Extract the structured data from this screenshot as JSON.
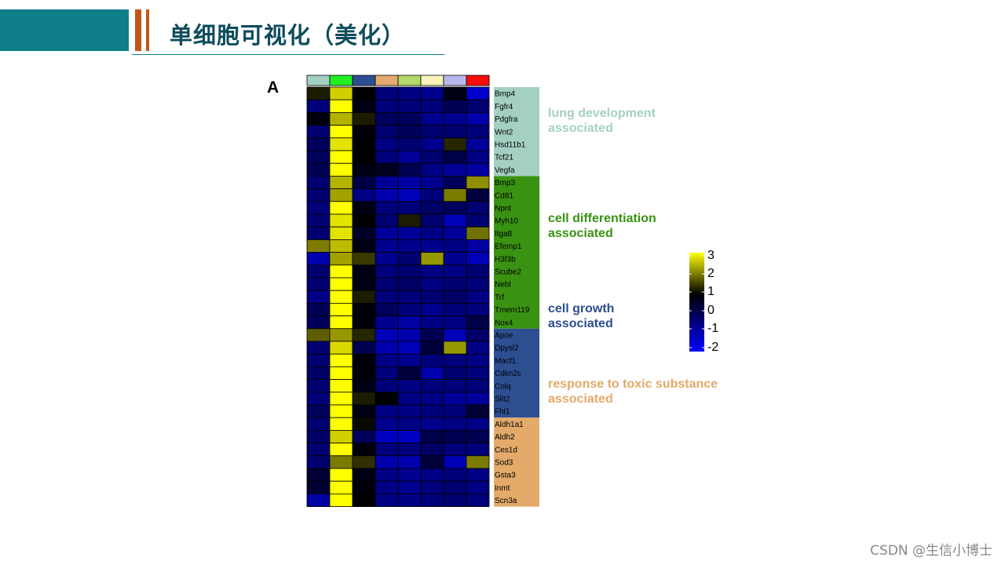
{
  "slide": {
    "title": "单细胞可视化（美化）",
    "panel_label": "A",
    "watermark": "CSDN @生信小博士"
  },
  "colors": {
    "teal": "#0f7f8a",
    "orange": "#c4541b",
    "title_text": "#0f4c5c",
    "cmap": [
      "#0000ff",
      "#000000",
      "#ffff00"
    ]
  },
  "heatmap": {
    "col_colors": [
      "#a4d0c4",
      "#22ee22",
      "#2d4f92",
      "#e3aa70",
      "#b3d968",
      "#f6f4b8",
      "#b9b8ee",
      "#ff0a0a"
    ],
    "genes": [
      "Bmp4",
      "Fgfr4",
      "Pdgfra",
      "Wnt2",
      "Hsd11b1",
      "Tcf21",
      "Vegfa",
      "Bmp3",
      "Cd81",
      "Npnt",
      "Myh10",
      "Itga8",
      "Efemp1",
      "H3f3b",
      "Scube2",
      "Nebl",
      "Trf",
      "Tmem119",
      "Nox4",
      "Apoe",
      "Dpysl2",
      "Macf1",
      "Cdkn2c",
      "Colq",
      "Slit2",
      "Fhl1",
      "Aldh1a1",
      "Aldh2",
      "Ces1d",
      "Sod3",
      "Gsta3",
      "Inmt",
      "Scn3a"
    ],
    "values": [
      [
        0.6,
        2.5,
        0.3,
        -0.9,
        -1.0,
        -1.1,
        0.1,
        -1.7
      ],
      [
        -0.9,
        3.0,
        0.1,
        -0.9,
        -0.9,
        -0.9,
        -0.5,
        -0.8
      ],
      [
        0.2,
        2.2,
        0.6,
        -0.6,
        -0.6,
        -1.1,
        -1.1,
        -1.4
      ],
      [
        -0.8,
        3.0,
        0.2,
        -0.8,
        -0.6,
        -0.8,
        -0.8,
        -0.9
      ],
      [
        -0.6,
        2.7,
        0.3,
        -1.0,
        -0.8,
        -1.1,
        0.7,
        -1.2
      ],
      [
        -0.6,
        3.0,
        0.3,
        -0.9,
        -1.2,
        -0.8,
        -0.4,
        -1.0
      ],
      [
        -0.5,
        3.0,
        0.1,
        0.0,
        -0.5,
        -1.0,
        -1.2,
        -1.3
      ],
      [
        -0.8,
        2.2,
        -0.4,
        -1.2,
        -1.3,
        -1.1,
        -0.6,
        1.8
      ],
      [
        -0.8,
        2.0,
        -1.0,
        -1.4,
        -1.5,
        -0.9,
        1.6,
        -0.3
      ],
      [
        -0.9,
        3.0,
        0.1,
        -0.9,
        -0.9,
        -0.7,
        -0.6,
        -0.8
      ],
      [
        -0.8,
        2.7,
        0.3,
        -0.8,
        0.6,
        -0.8,
        -1.5,
        -0.8
      ],
      [
        -0.8,
        2.7,
        -0.1,
        -1.2,
        -1.2,
        -1.0,
        -1.2,
        1.5
      ],
      [
        1.6,
        2.3,
        0.1,
        -1.1,
        -1.1,
        -1.1,
        -1.0,
        -1.3
      ],
      [
        -1.4,
        2.0,
        0.9,
        -1.1,
        -0.8,
        1.9,
        -1.1,
        -1.5
      ],
      [
        -0.8,
        3.0,
        0.1,
        -0.9,
        -0.8,
        -1.0,
        -1.0,
        -0.8
      ],
      [
        -0.8,
        3.0,
        0.1,
        -0.8,
        -0.7,
        -1.0,
        -0.8,
        -0.9
      ],
      [
        -1.0,
        3.0,
        0.6,
        -0.9,
        -0.9,
        -0.8,
        -0.7,
        -1.0
      ],
      [
        -0.5,
        3.0,
        0.2,
        -0.6,
        -0.9,
        -1.1,
        -0.9,
        -0.9
      ],
      [
        -0.6,
        3.0,
        0.2,
        -1.1,
        -1.3,
        -1.0,
        -1.0,
        -0.4
      ],
      [
        1.3,
        1.9,
        0.7,
        -1.5,
        -1.4,
        -0.5,
        -1.5,
        -0.7
      ],
      [
        -0.8,
        2.6,
        -0.5,
        -1.4,
        -1.5,
        -0.3,
        1.9,
        -1.0
      ],
      [
        -0.8,
        3.0,
        0.2,
        -1.0,
        -1.1,
        -0.9,
        -0.9,
        -1.0
      ],
      [
        -0.7,
        3.0,
        0.2,
        -0.9,
        -0.3,
        -1.4,
        -0.8,
        -0.9
      ],
      [
        -0.8,
        3.0,
        0.1,
        -0.9,
        -1.0,
        -0.9,
        -0.9,
        -0.9
      ],
      [
        -0.9,
        3.0,
        0.6,
        0.3,
        -1.0,
        -1.0,
        -1.2,
        -1.2
      ],
      [
        -0.6,
        3.0,
        0.1,
        -1.0,
        -1.0,
        -0.9,
        -0.9,
        -0.2
      ],
      [
        -0.8,
        3.0,
        0.4,
        -1.1,
        -1.0,
        -1.1,
        -1.0,
        -1.0
      ],
      [
        -0.7,
        2.5,
        -0.6,
        -1.6,
        -1.6,
        -0.4,
        -0.5,
        -0.5
      ],
      [
        -0.8,
        3.0,
        0.2,
        -0.9,
        -0.9,
        -0.7,
        -0.9,
        -0.9
      ],
      [
        -0.8,
        1.6,
        0.8,
        -1.4,
        -1.4,
        -0.3,
        -1.5,
        1.6
      ],
      [
        -0.2,
        3.0,
        0.1,
        -1.0,
        -1.1,
        -1.0,
        -0.9,
        -1.0
      ],
      [
        -0.2,
        3.0,
        0.2,
        -1.0,
        -1.1,
        -0.9,
        -0.8,
        -1.0
      ],
      [
        -1.3,
        3.0,
        0.3,
        -1.0,
        -1.0,
        -0.9,
        -0.8,
        -0.9
      ]
    ],
    "groups": [
      {
        "label": "lung development\nassociated",
        "color": "#a4d0c4",
        "text_color": "#a4d0c4",
        "start": 0,
        "end": 6
      },
      {
        "label": "cell differentiation\nassociated",
        "color": "#3a9212",
        "text_color": "#3a9212",
        "start": 7,
        "end": 18
      },
      {
        "label": "cell growth\nassociated",
        "color": "#2d4f92",
        "text_color": "#2d4f92",
        "start": 19,
        "end": 25
      },
      {
        "label": "response to toxic substance\nassociated",
        "color": "#e3aa6a",
        "text_color": "#e3aa6a",
        "start": 26,
        "end": 32
      }
    ],
    "legend": {
      "ticks": [
        "3",
        "2",
        "1",
        "0",
        "-1",
        "-2"
      ],
      "min": -2.2,
      "max": 3.0
    }
  }
}
